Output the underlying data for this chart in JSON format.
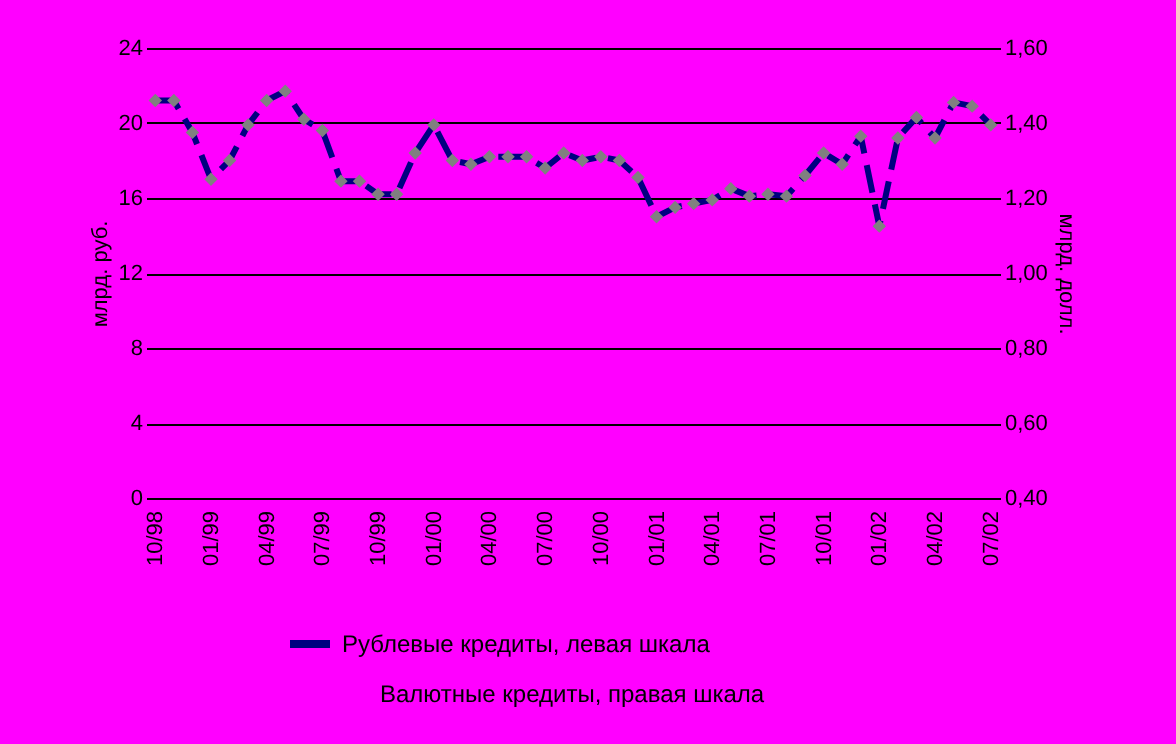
{
  "chart_data": {
    "type": "line",
    "categories": [
      "10/98",
      null,
      null,
      "01/99",
      null,
      null,
      "04/99",
      null,
      null,
      "07/99",
      null,
      null,
      "10/99",
      null,
      null,
      "01/00",
      null,
      null,
      "04/00",
      null,
      null,
      "07/00",
      null,
      null,
      "10/00",
      null,
      null,
      "01/01",
      null,
      null,
      "04/01",
      null,
      null,
      "07/01",
      null,
      null,
      "10/01",
      null,
      null,
      "01/02",
      null,
      null,
      "04/02",
      null,
      null,
      "07/02"
    ],
    "series": [
      {
        "name": "Рублевые кредиты, левая шкала",
        "color": "#000080",
        "values": [
          21.2,
          21.2,
          19.5,
          17.0,
          18.0,
          19.9,
          21.2,
          21.7,
          20.2,
          19.6,
          16.9,
          16.9,
          16.2,
          16.2,
          18.4,
          19.9,
          18.0,
          17.8,
          18.2,
          18.2,
          18.2,
          17.6,
          18.4,
          18.0,
          18.2,
          18.0,
          17.1,
          15.0,
          15.5,
          15.7,
          15.9,
          16.5,
          16.1,
          16.2,
          16.1,
          17.2,
          18.4,
          17.8,
          19.3,
          14.5,
          19.2,
          20.3,
          19.2,
          21.1,
          20.9,
          19.9
        ]
      }
    ],
    "ylabel": "млрд. руб.",
    "y2label": "млрд. долл.",
    "ylim": [
      0,
      24
    ],
    "yticks": [
      0,
      4,
      8,
      12,
      16,
      20,
      24
    ],
    "y2lim": [
      0.4,
      1.6
    ],
    "y2ticks": [
      {
        "value": 0.4,
        "label": "0,40"
      },
      {
        "value": 0.6,
        "label": "0,60"
      },
      {
        "value": 0.8,
        "label": "0,80"
      },
      {
        "value": 1.0,
        "label": "1,00"
      },
      {
        "value": 1.2,
        "label": "1,20"
      },
      {
        "value": 1.4,
        "label": "1,40"
      },
      {
        "value": 1.6,
        "label": "1,60"
      }
    ],
    "annotations": [
      "Валютные кредиты, правая шкала"
    ],
    "grid": "y",
    "legend": "bottom",
    "marker": "diamond",
    "line_style": "dashed"
  }
}
